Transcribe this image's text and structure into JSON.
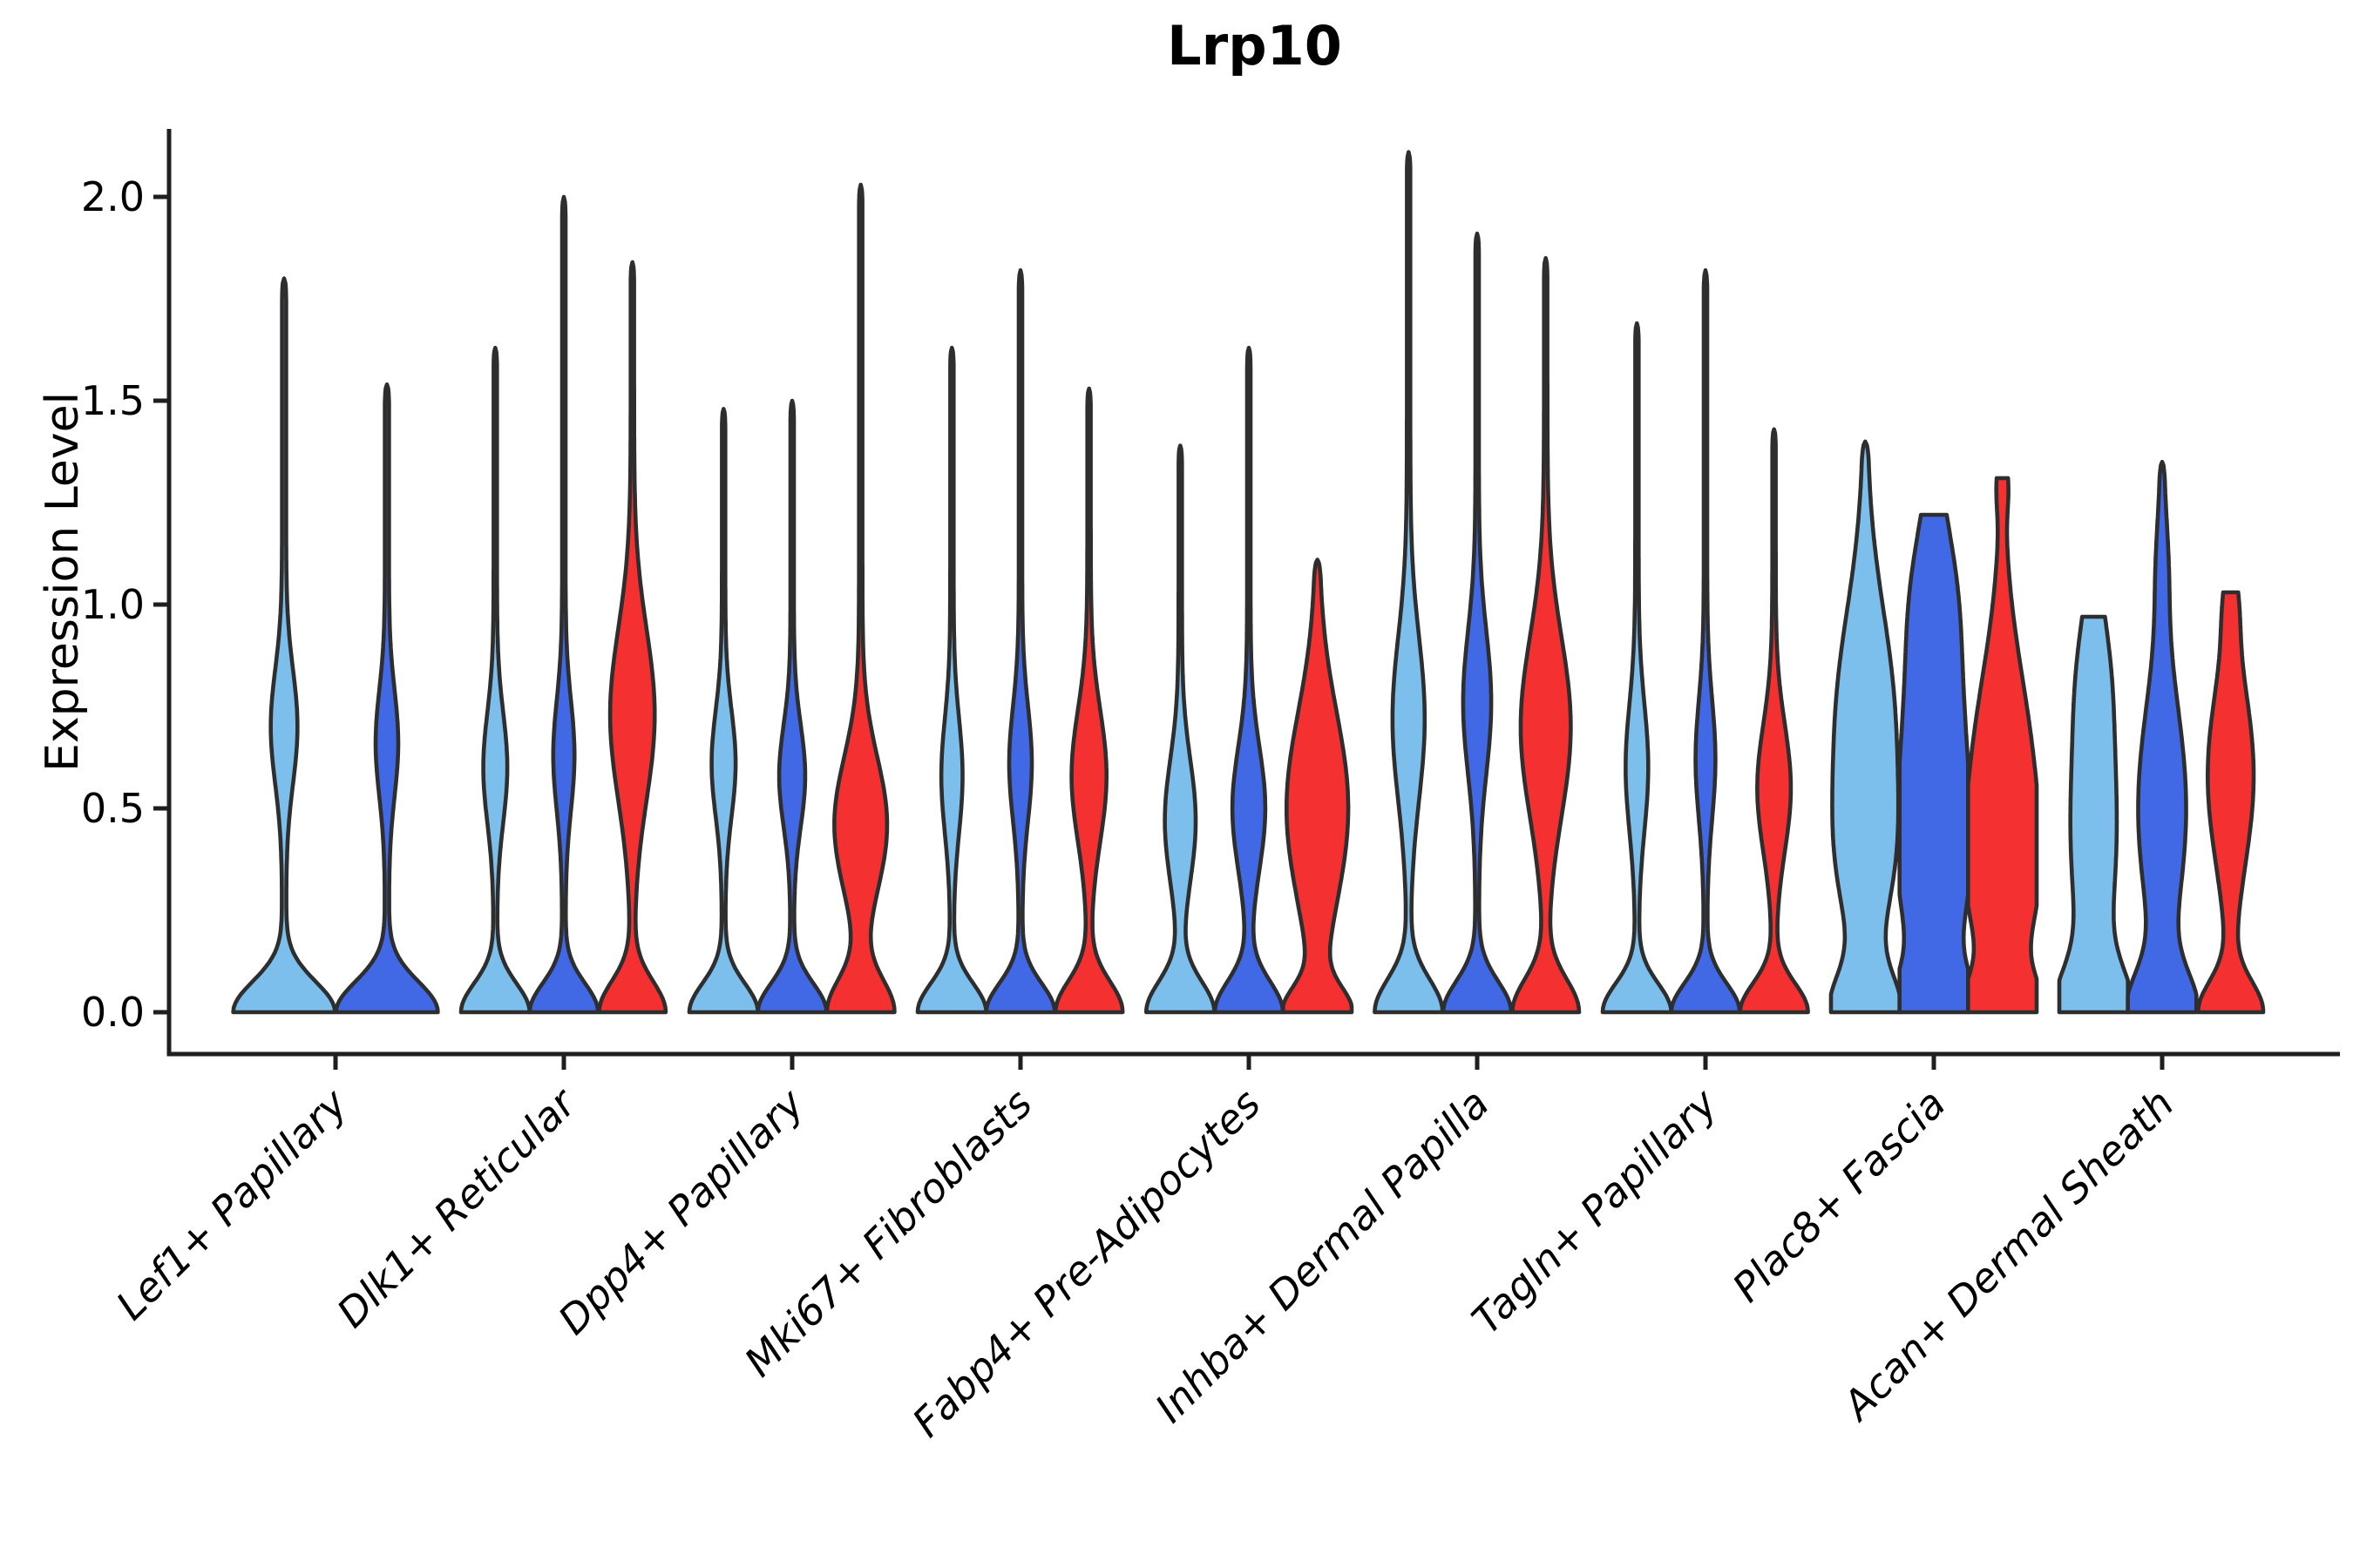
{
  "figure": {
    "title": "Lrp10",
    "y_axis_label": "Expression Level"
  },
  "chart_data": {
    "type": "violin",
    "title": "Lrp10",
    "ylabel": "Expression Level",
    "xlabel": "",
    "ylim": [
      0.0,
      2.2
    ],
    "yticks": [
      0.0,
      0.5,
      1.0,
      1.5,
      2.0
    ],
    "ytick_labels": [
      "0.0",
      "0.5",
      "1.0",
      "1.5",
      "2.0"
    ],
    "grid": false,
    "legend_position": "none",
    "background_color": "#ffffff",
    "outline_color": "#2e2e2e",
    "axis_color": "#1f1f1f",
    "categories": [
      "Lef1+ Papillary",
      "Dlk1+ Reticular",
      "Dpp4+ Papillary",
      "Mki67+ Fibroblasts",
      "Fabp4+ Pre-Adipocytes",
      "Inhba+ Dermal Papilla",
      "Tagln+ Papillary",
      "Plac8+ Fascia",
      "Acan+ Dermal Sheath"
    ],
    "series": [
      {
        "key": "light-blue",
        "color": "#7CBFEC",
        "violins": [
          {
            "max": 1.8,
            "stem": 0.04,
            "comps": [
              [
                0.95,
                0,
                0.075
              ],
              [
                0.22,
                0.7,
                0.14
              ]
            ]
          },
          {
            "max": 1.63,
            "stem": 0.05,
            "comps": [
              [
                0.95,
                0,
                0.07
              ],
              [
                0.3,
                0.6,
                0.135
              ]
            ]
          },
          {
            "max": 1.48,
            "stem": 0.05,
            "comps": [
              [
                0.95,
                0,
                0.07
              ],
              [
                0.3,
                0.61,
                0.13
              ]
            ]
          },
          {
            "max": 1.63,
            "stem": 0.05,
            "comps": [
              [
                0.95,
                0,
                0.07
              ],
              [
                0.26,
                0.58,
                0.14
              ]
            ]
          },
          {
            "max": 1.39,
            "stem": 0.05,
            "comps": [
              [
                0.94,
                0,
                0.075
              ],
              [
                0.4,
                0.47,
                0.15
              ]
            ]
          },
          {
            "max": 2.11,
            "stem": 0.05,
            "comps": [
              [
                0.94,
                0,
                0.08
              ],
              [
                0.42,
                0.72,
                0.2
              ]
            ]
          },
          {
            "max": 1.69,
            "stem": 0.05,
            "comps": [
              [
                0.95,
                0,
                0.07
              ],
              [
                0.28,
                0.6,
                0.155
              ]
            ]
          },
          {
            "max": 1.4,
            "stem": 0.05,
            "comps": [
              [
                0.9,
                0,
                0.09
              ],
              [
                0.5,
                0.35,
                0.18
              ],
              [
                0.78,
                0.72,
                0.27
              ]
            ]
          },
          {
            "max": 0.97,
            "stem": 0.05,
            "flat": true,
            "comps": [
              [
                0.9,
                0,
                0.1
              ],
              [
                0.62,
                0.45,
                0.3
              ],
              [
                0.2,
                0.85,
                0.15
              ]
            ]
          }
        ]
      },
      {
        "key": "dark-blue",
        "color": "#4169E6",
        "violins": [
          {
            "max": 1.54,
            "stem": 0.04,
            "comps": [
              [
                0.95,
                0,
                0.075
              ],
              [
                0.18,
                0.66,
                0.13
              ]
            ]
          },
          {
            "max": 2.0,
            "stem": 0.05,
            "comps": [
              [
                0.95,
                0,
                0.07
              ],
              [
                0.26,
                0.63,
                0.135
              ]
            ]
          },
          {
            "max": 1.5,
            "stem": 0.05,
            "comps": [
              [
                0.95,
                0,
                0.07
              ],
              [
                0.33,
                0.58,
                0.125
              ]
            ]
          },
          {
            "max": 1.82,
            "stem": 0.05,
            "comps": [
              [
                0.95,
                0,
                0.07
              ],
              [
                0.28,
                0.61,
                0.14
              ]
            ]
          },
          {
            "max": 1.63,
            "stem": 0.05,
            "comps": [
              [
                0.94,
                0,
                0.075
              ],
              [
                0.43,
                0.5,
                0.15
              ]
            ]
          },
          {
            "max": 1.91,
            "stem": 0.05,
            "comps": [
              [
                0.94,
                0,
                0.075
              ],
              [
                0.36,
                0.76,
                0.175
              ]
            ]
          },
          {
            "max": 1.82,
            "stem": 0.05,
            "comps": [
              [
                0.95,
                0,
                0.07
              ],
              [
                0.24,
                0.62,
                0.145
              ]
            ]
          },
          {
            "max": 1.22,
            "stem": 0.05,
            "flat": true,
            "comps": [
              [
                0.9,
                0,
                0.09
              ],
              [
                0.4,
                0.3,
                0.18
              ],
              [
                0.85,
                0.6,
                0.33
              ],
              [
                0.3,
                1.05,
                0.17
              ]
            ]
          },
          {
            "max": 1.35,
            "stem": 0.05,
            "comps": [
              [
                0.9,
                0,
                0.095
              ],
              [
                0.65,
                0.5,
                0.26
              ],
              [
                0.1,
                1.1,
                0.12
              ]
            ]
          }
        ]
      },
      {
        "key": "red",
        "color": "#F53030",
        "violins": [
          null,
          {
            "max": 1.84,
            "stem": 0.05,
            "comps": [
              [
                0.92,
                0,
                0.075
              ],
              [
                0.6,
                0.73,
                0.21
              ]
            ]
          },
          {
            "max": 2.03,
            "stem": 0.05,
            "comps": [
              [
                0.92,
                0,
                0.08
              ],
              [
                0.72,
                0.46,
                0.165
              ]
            ]
          },
          {
            "max": 1.53,
            "stem": 0.05,
            "comps": [
              [
                0.93,
                0,
                0.075
              ],
              [
                0.46,
                0.58,
                0.16
              ]
            ]
          },
          {
            "max": 1.11,
            "stem": 0.05,
            "comps": [
              [
                0.88,
                0,
                0.06
              ],
              [
                0.85,
                0.5,
                0.235
              ]
            ]
          },
          {
            "max": 1.85,
            "stem": 0.05,
            "comps": [
              [
                0.92,
                0,
                0.08
              ],
              [
                0.68,
                0.7,
                0.22
              ]
            ]
          },
          {
            "max": 1.43,
            "stem": 0.05,
            "comps": [
              [
                0.94,
                0,
                0.07
              ],
              [
                0.44,
                0.55,
                0.155
              ]
            ]
          },
          {
            "max": 1.31,
            "stem": 0.05,
            "flat": true,
            "comps": [
              [
                0.9,
                0,
                0.08
              ],
              [
                0.45,
                0.28,
                0.16
              ],
              [
                0.85,
                0.55,
                0.28
              ],
              [
                0.1,
                1.29,
                0.06
              ]
            ]
          },
          {
            "max": 1.03,
            "stem": 0.05,
            "flat": true,
            "comps": [
              [
                0.88,
                0,
                0.075
              ],
              [
                0.62,
                0.58,
                0.22
              ],
              [
                0.1,
                1.0,
                0.08
              ]
            ]
          }
        ]
      }
    ]
  }
}
